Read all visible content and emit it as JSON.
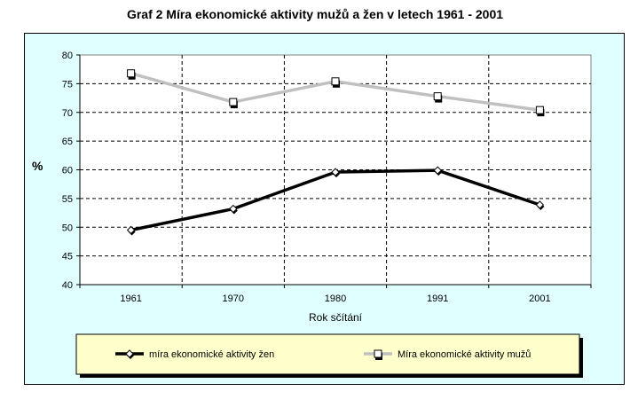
{
  "chart_data": {
    "type": "line",
    "title": "Graf 2 Míra ekonomické aktivity mužů a žen v letech 1961 - 2001",
    "xlabel": "Rok sčítání",
    "ylabel": "%",
    "categories": [
      "1961",
      "1970",
      "1980",
      "1991",
      "2001"
    ],
    "ylim": [
      40,
      80
    ],
    "yticks": [
      40,
      45,
      50,
      55,
      60,
      65,
      70,
      75,
      80
    ],
    "grid": true,
    "legend_position": "bottom",
    "series": [
      {
        "name": "míra ekonomické aktivity žen",
        "values": [
          49.5,
          53.2,
          59.6,
          59.9,
          53.9
        ],
        "color": "#000000",
        "marker": "diamond"
      },
      {
        "name": "Míra ekonomické aktivity mužů",
        "values": [
          76.8,
          71.8,
          75.4,
          72.8,
          70.4
        ],
        "color": "#c0c0c0",
        "marker": "square"
      }
    ],
    "colors": {
      "plot_background": "#ffffff",
      "frame_background": "#e0ffff",
      "legend_background": "#ffffcc"
    }
  }
}
